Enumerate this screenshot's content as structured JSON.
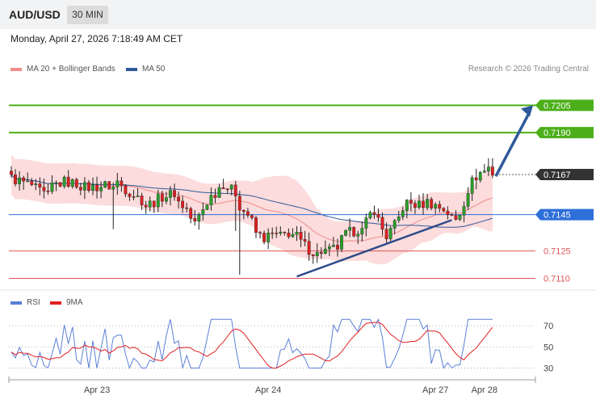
{
  "header": {
    "symbol": "AUD/USD",
    "timeframe": "30 MIN"
  },
  "datetime": "Monday, April 27, 2026 7:18:49 AM CET",
  "legend": {
    "ma20": {
      "label": "MA 20 + Bollinger Bands",
      "color": "#f08c8c"
    },
    "ma50": {
      "label": "MA 50",
      "color": "#2e5a9a"
    }
  },
  "credit": "Research © 2026 Trading Central",
  "rsi_legend": {
    "rsi": {
      "label": "RSI",
      "color": "#5b7fd8"
    },
    "ma9": {
      "label": "9MA",
      "color": "#e02020"
    }
  },
  "chart_data": [
    {
      "type": "candlestick",
      "ylim": [
        0.7104,
        0.7222
      ],
      "x_tick_labels": [
        "Apr 23",
        "Apr 24",
        "Apr 27",
        "Apr 28"
      ],
      "current_price": {
        "label": "0.7167",
        "value": 0.7167
      },
      "levels": [
        {
          "label": "0.7205",
          "value": 0.7205,
          "kind": "resistance",
          "color": "#4caf1a"
        },
        {
          "label": "0.7190",
          "value": 0.719,
          "kind": "resistance",
          "color": "#4caf1a"
        },
        {
          "label": "0.7145",
          "value": 0.7145,
          "kind": "pivot",
          "color": "#2e6fd8"
        },
        {
          "label": "0.7125",
          "value": 0.7125,
          "kind": "support",
          "color": "#e05555"
        },
        {
          "label": "0.7110",
          "value": 0.711,
          "kind": "support",
          "color": "#e05555"
        }
      ],
      "colors": {
        "up": "#2aa02a",
        "down": "#e02020",
        "band": "#fcdcdc",
        "trendline": "#2e4a8a",
        "arrow": "#2e5a9a"
      }
    },
    {
      "type": "line",
      "title": "RSI",
      "ylim": [
        25,
        80
      ],
      "y_ticks": [
        30,
        50,
        70
      ],
      "series": [
        {
          "name": "RSI"
        },
        {
          "name": "9MA"
        }
      ]
    }
  ]
}
